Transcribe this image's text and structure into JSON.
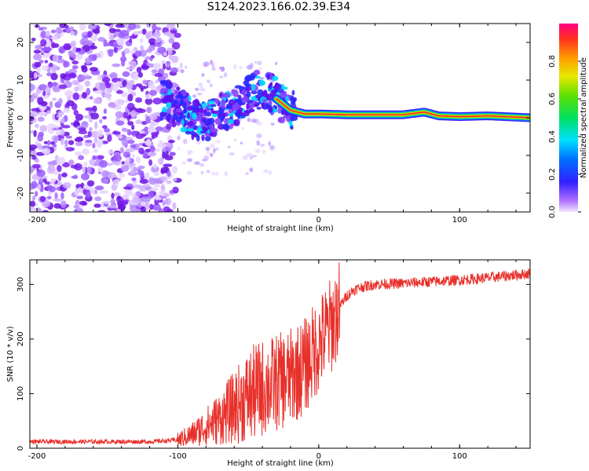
{
  "title": "S124.2023.166.02.39.E34",
  "colors": {
    "snr_line": "#e8302a",
    "ridge_core": "#e0283c",
    "purple": "#7a1ef0",
    "axis": "#000000"
  },
  "chart_data": [
    {
      "type": "heatmap",
      "name": "spectrogram",
      "xlabel": "Height of straight line (km)",
      "ylabel": "Frequency (Hz)",
      "xlim": [
        -205,
        150
      ],
      "ylim": [
        -25,
        25
      ],
      "xticks": [
        -200,
        -100,
        0,
        100
      ],
      "yticks": [
        -20,
        -10,
        0,
        10,
        20
      ],
      "xtick_labels": [
        "-200",
        "-100",
        "0",
        "100"
      ],
      "ytick_labels": [
        "-20",
        "-10",
        "0",
        "10",
        "20"
      ],
      "colorbar": {
        "label": "Normalized spectral amplitude",
        "range": [
          0,
          1
        ],
        "ticks": [
          0.0,
          0.2,
          0.4,
          0.6,
          0.8
        ],
        "tick_labels": [
          "0.0",
          "0.2",
          "0.4",
          "0.6",
          "0.8"
        ]
      },
      "ridge": {
        "description_points_x": [
          -110,
          -100,
          -90,
          -80,
          -70,
          -60,
          -50,
          -40,
          -35,
          -30,
          -20,
          -10,
          0,
          20,
          40,
          60,
          75,
          85,
          100,
          120,
          150
        ],
        "frequency": [
          5,
          3,
          0,
          -1,
          1,
          3,
          6,
          8,
          7,
          5,
          2,
          1,
          1,
          0.8,
          0.8,
          0.8,
          1.5,
          0.5,
          0.3,
          0.5,
          0
        ]
      }
    },
    {
      "type": "line",
      "name": "snr",
      "xlabel": "Height of straight line (km)",
      "ylabel": "SNR (10 * v/v)",
      "xlim": [
        -205,
        150
      ],
      "ylim": [
        0,
        345
      ],
      "xticks": [
        -200,
        -100,
        0,
        100
      ],
      "yticks": [
        0,
        100,
        200,
        300
      ],
      "xtick_labels": [
        "-200",
        "-100",
        "0",
        "100"
      ],
      "ytick_labels": [
        "0",
        "100",
        "200",
        "300"
      ],
      "series": [
        {
          "name": "SNR",
          "x": [
            -205,
            -180,
            -150,
            -120,
            -100,
            -90,
            -80,
            -70,
            -60,
            -50,
            -40,
            -30,
            -20,
            -10,
            0,
            10,
            15,
            20,
            25,
            30,
            40,
            60,
            80,
            100,
            120,
            150
          ],
          "y": [
            12,
            12,
            12,
            12,
            15,
            25,
            40,
            55,
            75,
            95,
            110,
            120,
            130,
            150,
            190,
            230,
            260,
            280,
            290,
            295,
            300,
            302,
            305,
            308,
            312,
            320
          ]
        }
      ]
    }
  ]
}
